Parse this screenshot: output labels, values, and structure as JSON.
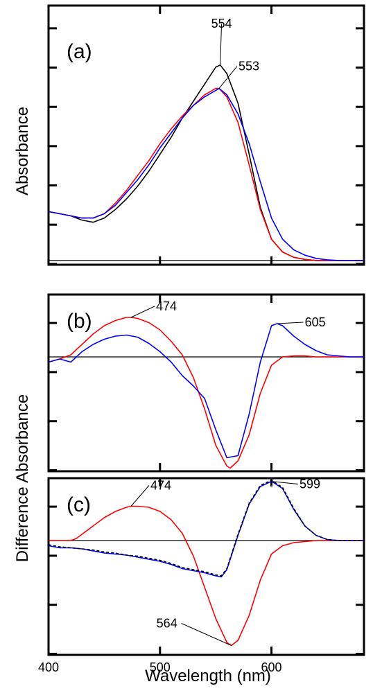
{
  "figure": {
    "ylabel_top": "Absorbance",
    "ylabel_bottom": "Difference Absorbance",
    "xlabel": "Wavelength (nm)"
  },
  "chart_data": [
    {
      "type": "line",
      "panel": "(a)",
      "xlim": [
        400,
        683
      ],
      "ylim": [
        -0.02,
        1.2
      ],
      "xticks": [
        400,
        500,
        600
      ],
      "xtick_labels": [
        "",
        "",
        ""
      ],
      "grid": false,
      "legend": "none",
      "baseline": 0,
      "series": [
        {
          "color": "#000000",
          "x": [
            400,
            410,
            420,
            430,
            440,
            450,
            460,
            470,
            480,
            490,
            500,
            510,
            520,
            530,
            540,
            550,
            554,
            560,
            570,
            580,
            590,
            600,
            610,
            620,
            630,
            640,
            660,
            683
          ],
          "y": [
            0.23,
            0.22,
            0.21,
            0.19,
            0.18,
            0.2,
            0.24,
            0.29,
            0.35,
            0.42,
            0.5,
            0.58,
            0.67,
            0.75,
            0.83,
            0.91,
            0.92,
            0.88,
            0.74,
            0.5,
            0.25,
            0.1,
            0.04,
            0.015,
            0.005,
            0.0,
            0.0,
            0.0
          ]
        },
        {
          "color": "#ff0000",
          "x": [
            400,
            410,
            420,
            430,
            440,
            450,
            460,
            470,
            480,
            490,
            500,
            510,
            520,
            530,
            540,
            550,
            553,
            560,
            570,
            580,
            590,
            600,
            610,
            620,
            630,
            640,
            660,
            683
          ],
          "y": [
            0.23,
            0.22,
            0.21,
            0.2,
            0.2,
            0.22,
            0.27,
            0.33,
            0.4,
            0.47,
            0.55,
            0.62,
            0.68,
            0.73,
            0.78,
            0.81,
            0.81,
            0.77,
            0.65,
            0.45,
            0.24,
            0.1,
            0.04,
            0.015,
            0.005,
            0.0,
            0.0,
            0.0
          ]
        },
        {
          "color": "#0000ff",
          "x": [
            400,
            410,
            420,
            430,
            440,
            450,
            460,
            470,
            480,
            490,
            500,
            510,
            520,
            530,
            540,
            550,
            553,
            560,
            570,
            580,
            590,
            600,
            610,
            620,
            630,
            640,
            650,
            660,
            683
          ],
          "y": [
            0.23,
            0.22,
            0.21,
            0.2,
            0.2,
            0.22,
            0.26,
            0.32,
            0.38,
            0.45,
            0.53,
            0.6,
            0.67,
            0.73,
            0.77,
            0.8,
            0.81,
            0.78,
            0.69,
            0.55,
            0.37,
            0.2,
            0.1,
            0.05,
            0.025,
            0.01,
            0.003,
            0.0,
            0.0
          ]
        }
      ],
      "annotations": [
        {
          "text": "554",
          "x": 554,
          "y": 0.92
        },
        {
          "text": "553",
          "x": 553,
          "y": 0.81
        }
      ]
    },
    {
      "type": "line",
      "panel": "(b)",
      "xlim": [
        400,
        683
      ],
      "ylim": [
        -1.1,
        0.6
      ],
      "xticks": [
        400,
        500,
        600
      ],
      "xtick_labels": [
        "",
        "",
        ""
      ],
      "grid": false,
      "legend": "none",
      "baseline": 0,
      "series": [
        {
          "color": "#ff0000",
          "x": [
            400,
            410,
            420,
            430,
            440,
            450,
            460,
            470,
            474,
            480,
            490,
            500,
            510,
            520,
            530,
            540,
            550,
            560,
            563,
            570,
            580,
            590,
            600,
            610,
            620,
            630,
            640,
            660,
            683
          ],
          "y": [
            -0.05,
            -0.02,
            0.02,
            0.12,
            0.22,
            0.3,
            0.35,
            0.38,
            0.38,
            0.37,
            0.33,
            0.26,
            0.15,
            0.02,
            -0.2,
            -0.5,
            -0.85,
            -1.05,
            -1.07,
            -1.0,
            -0.75,
            -0.35,
            -0.08,
            0.0,
            0.01,
            0.01,
            0.0,
            0.0,
            0.0
          ]
        },
        {
          "color": "#0000ff",
          "x": [
            400,
            410,
            420,
            430,
            440,
            450,
            460,
            470,
            480,
            490,
            500,
            510,
            520,
            530,
            540,
            550,
            560,
            570,
            580,
            590,
            600,
            605,
            610,
            620,
            630,
            640,
            650,
            660,
            670,
            683
          ],
          "y": [
            -0.05,
            -0.02,
            -0.05,
            0.05,
            0.12,
            0.17,
            0.2,
            0.21,
            0.19,
            0.13,
            0.05,
            -0.05,
            -0.18,
            -0.28,
            -0.4,
            -0.7,
            -0.97,
            -0.95,
            -0.55,
            -0.05,
            0.3,
            0.32,
            0.3,
            0.2,
            0.12,
            0.06,
            0.02,
            0.01,
            0.0,
            0.0
          ]
        }
      ],
      "annotations": [
        {
          "text": "474",
          "x": 474,
          "y": 0.38
        },
        {
          "text": "605",
          "x": 605,
          "y": 0.32
        }
      ]
    },
    {
      "type": "line",
      "panel": "(c)",
      "xlim": [
        400,
        683
      ],
      "ylim": [
        -1.1,
        0.6
      ],
      "xticks": [
        400,
        500,
        600
      ],
      "xtick_labels": [
        "400",
        "500",
        "600"
      ],
      "grid": false,
      "legend": "none",
      "baseline": 0,
      "series": [
        {
          "color": "#ff0000",
          "x": [
            400,
            410,
            420,
            425,
            430,
            440,
            450,
            460,
            470,
            474,
            480,
            490,
            500,
            510,
            520,
            530,
            540,
            550,
            560,
            564,
            570,
            580,
            590,
            600,
            610,
            620,
            630,
            640,
            660,
            683
          ],
          "y": [
            0.0,
            0.0,
            0.0,
            0.02,
            0.06,
            0.14,
            0.22,
            0.28,
            0.32,
            0.33,
            0.33,
            0.32,
            0.28,
            0.2,
            0.07,
            -0.15,
            -0.45,
            -0.75,
            -0.98,
            -1.01,
            -0.96,
            -0.72,
            -0.38,
            -0.13,
            -0.05,
            -0.02,
            -0.01,
            0.0,
            0.0,
            0.0
          ]
        },
        {
          "color": "#0000ff",
          "x": [
            400,
            410,
            420,
            430,
            440,
            450,
            460,
            470,
            480,
            490,
            500,
            510,
            520,
            530,
            540,
            550,
            555,
            560,
            570,
            580,
            590,
            600,
            610,
            620,
            630,
            640,
            650,
            660,
            683
          ],
          "y": [
            -0.05,
            -0.07,
            -0.07,
            -0.08,
            -0.1,
            -0.12,
            -0.13,
            -0.14,
            -0.16,
            -0.18,
            -0.2,
            -0.23,
            -0.27,
            -0.29,
            -0.31,
            -0.34,
            -0.35,
            -0.28,
            0.05,
            0.35,
            0.52,
            0.57,
            0.5,
            0.3,
            0.14,
            0.05,
            0.01,
            0.0,
            0.0
          ]
        },
        {
          "color": "#000000",
          "dashed": true,
          "x": [
            400,
            410,
            420,
            430,
            440,
            450,
            460,
            470,
            480,
            490,
            500,
            510,
            520,
            530,
            540,
            550,
            555,
            560,
            570,
            580,
            590,
            600,
            610,
            620,
            630,
            640,
            650,
            660,
            683
          ],
          "y": [
            -0.04,
            -0.06,
            -0.07,
            -0.08,
            -0.09,
            -0.11,
            -0.12,
            -0.14,
            -0.15,
            -0.17,
            -0.19,
            -0.22,
            -0.26,
            -0.28,
            -0.3,
            -0.33,
            -0.34,
            -0.27,
            0.06,
            0.36,
            0.53,
            0.58,
            0.51,
            0.31,
            0.14,
            0.05,
            0.01,
            0.0,
            0.0
          ]
        }
      ],
      "annotations": [
        {
          "text": "474",
          "x": 474,
          "y": 0.33
        },
        {
          "text": "599",
          "x": 599,
          "y": 0.57
        },
        {
          "text": "564",
          "x": 564,
          "y": -1.01
        }
      ]
    }
  ]
}
